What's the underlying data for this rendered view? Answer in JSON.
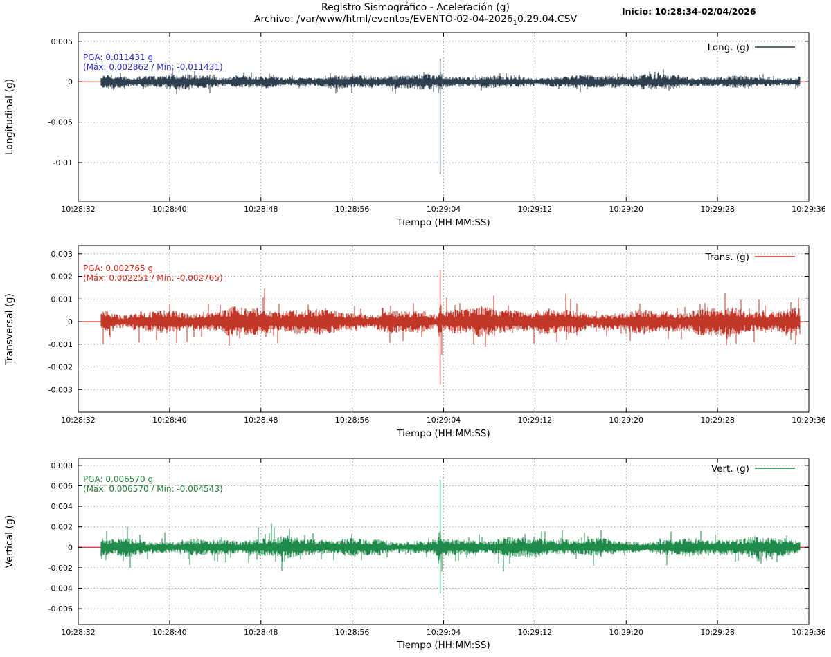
{
  "header": {
    "title": "Registro Sismográfico - Aceleración (g)",
    "file_label_prefix": "Archivo: /var/www/html/eventos/EVENTO-02-04-2026",
    "file_label_sub": "1",
    "file_label_suffix": "0.29.04.CSV",
    "inicio": "Inicio: 10:28:34-02/04/2026"
  },
  "chart_data": [
    {
      "type": "line",
      "name": "longitudinal",
      "ylabel": "Longitudinal (g)",
      "xlabel": "Tiempo (HH:MM:SS)",
      "legend": "Long. (g)",
      "series_color": "#2e3f50",
      "zero_line_color": "#e00000",
      "annotation": {
        "pga_line": "PGA: 0.011431 g",
        "range_line": "(Máx: 0.002862 / Mín: -0.011431)",
        "color": "#2a2ac9"
      },
      "pga_g": 0.011431,
      "max_g": 0.002862,
      "min_g": -0.011431,
      "x_tick_labels": [
        "10:28:32",
        "10:28:40",
        "10:28:48",
        "10:28:56",
        "10:29:04",
        "10:29:12",
        "10:29:20",
        "10:29:28",
        "10:29:36"
      ],
      "x_range_s": [
        0,
        64
      ],
      "x_tick_step_s": 8,
      "y_ticks": [
        0.005,
        0,
        -0.005,
        -0.01
      ],
      "y_tick_labels": [
        "0.005",
        "0",
        "-0.005",
        "-0.01"
      ],
      "ylim": [
        -0.0148,
        0.0061
      ],
      "grid": true,
      "legend_position": "top-right",
      "signal": {
        "start_s": 2.0,
        "end_s": 63.2,
        "noise_base_g": 0.00055,
        "noise_peak_g": 0.0011,
        "spike_time_s": 31.7,
        "spike_max_g": 0.002862,
        "spike_min_g": -0.011431
      }
    },
    {
      "type": "line",
      "name": "transversal",
      "ylabel": "Transversal (g)",
      "xlabel": "Tiempo (HH:MM:SS)",
      "legend": "Trans. (g)",
      "series_color": "#c13828",
      "zero_line_color": "#e00000",
      "annotation": {
        "pga_line": "PGA: 0.002765 g",
        "range_line": "(Máx: 0.002251 / Mín: -0.002765)",
        "color": "#d42a1a"
      },
      "pga_g": 0.002765,
      "max_g": 0.002251,
      "min_g": -0.002765,
      "x_tick_labels": [
        "10:28:32",
        "10:28:40",
        "10:28:48",
        "10:28:56",
        "10:29:04",
        "10:29:12",
        "10:29:20",
        "10:29:28",
        "10:29:36"
      ],
      "x_range_s": [
        0,
        64
      ],
      "x_tick_step_s": 8,
      "y_ticks": [
        0.003,
        0.002,
        0.001,
        0,
        -0.001,
        -0.002,
        -0.003
      ],
      "y_tick_labels": [
        "0.003",
        "0.002",
        "0.001",
        "0",
        "-0.001",
        "-0.002",
        "-0.003"
      ],
      "ylim": [
        -0.004,
        0.00336
      ],
      "grid": true,
      "legend_position": "top-right",
      "signal": {
        "start_s": 2.0,
        "end_s": 63.2,
        "noise_base_g": 0.00038,
        "noise_peak_g": 0.001,
        "spike_time_s": 31.7,
        "spike_max_g": 0.002251,
        "spike_min_g": -0.002765
      }
    },
    {
      "type": "line",
      "name": "vertical",
      "ylabel": "Vertical (g)",
      "xlabel": "Tiempo (HH:MM:SS)",
      "legend": "Vert. (g)",
      "series_color": "#1f8b4a",
      "zero_line_color": "#e00000",
      "annotation": {
        "pga_line": "PGA: 0.006570 g",
        "range_line": "(Máx: 0.006570 / Mín: -0.004543)",
        "color": "#1e7e34"
      },
      "pga_g": 0.00657,
      "max_g": 0.00657,
      "min_g": -0.004543,
      "x_tick_labels": [
        "10:28:32",
        "10:28:40",
        "10:28:48",
        "10:28:56",
        "10:29:04",
        "10:29:12",
        "10:29:20",
        "10:29:28",
        "10:29:36"
      ],
      "x_range_s": [
        0,
        64
      ],
      "x_tick_step_s": 8,
      "y_ticks": [
        0.008,
        0.006,
        0.004,
        0.002,
        0,
        -0.002,
        -0.004,
        -0.006
      ],
      "y_tick_labels": [
        "0.008",
        "0.006",
        "0.004",
        "0.002",
        "0",
        "-0.002",
        "-0.004",
        "-0.006"
      ],
      "ylim": [
        -0.00755,
        0.00867
      ],
      "grid": true,
      "legend_position": "top-right",
      "signal": {
        "start_s": 2.0,
        "end_s": 63.2,
        "noise_base_g": 0.0006,
        "noise_peak_g": 0.0016,
        "spike_time_s": 31.7,
        "spike_max_g": 0.00657,
        "spike_min_g": -0.004543
      }
    }
  ]
}
